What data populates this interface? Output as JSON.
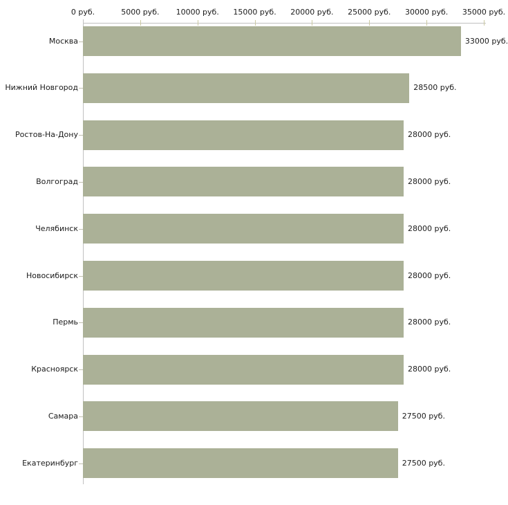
{
  "chart_data": {
    "type": "bar",
    "orientation": "horizontal",
    "title": "",
    "categories": [
      "Москва",
      "Нижний Новгород",
      "Ростов-На-Дону",
      "Волгоград",
      "Челябинск",
      "Новосибирск",
      "Пермь",
      "Красноярск",
      "Самара",
      "Екатеринбург"
    ],
    "values": [
      33000,
      28500,
      28000,
      28000,
      28000,
      28000,
      28000,
      28000,
      27500,
      27500
    ],
    "value_labels": [
      "33000 руб.",
      "28500 руб.",
      "28000 руб.",
      "28000 руб.",
      "28000 руб.",
      "28000 руб.",
      "28000 руб.",
      "28000 руб.",
      "27500 руб.",
      "27500 руб."
    ],
    "unit": "руб.",
    "xlim": [
      0,
      35000
    ],
    "grid": false,
    "legend": "none",
    "x_axis": {
      "position": "top",
      "ticks": [
        0,
        5000,
        10000,
        15000,
        20000,
        25000,
        30000,
        35000
      ],
      "tick_labels": [
        "0 руб.",
        "5000 руб.",
        "10000 руб.",
        "15000 руб.",
        "20000 руб.",
        "25000 руб.",
        "30000 руб.",
        "35000 руб."
      ]
    },
    "colors": {
      "bar": "#abb197",
      "axis_line": "#c0c0c0",
      "value_tick": "#cbc9a1",
      "category_tick": "#c0bfae",
      "text": "#1a1a1a",
      "background": "#ffffff"
    }
  }
}
